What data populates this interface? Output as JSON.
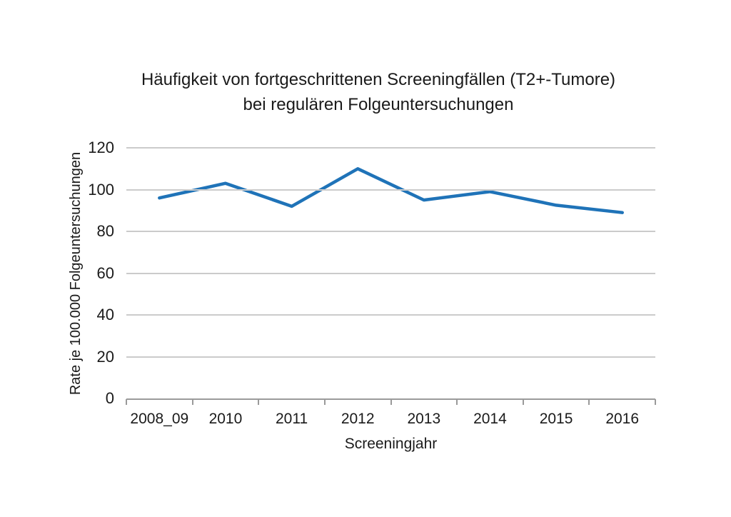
{
  "chart_data": {
    "type": "line",
    "title_line1": "Häufigkeit von fortgeschrittenen Screeningfällen (T2+-Tumore)",
    "title_line2": "bei regulären Folgeuntersuchungen",
    "xlabel": "Screeningjahr",
    "ylabel": "Rate je 100.000 Folgeuntersuchungen",
    "categories": [
      "2008_09",
      "2010",
      "2011",
      "2012",
      "2013",
      "2014",
      "2015",
      "2016"
    ],
    "values": [
      96,
      103,
      92,
      110,
      95,
      99,
      92.5,
      89
    ],
    "ylim": [
      0,
      120
    ],
    "yticks": [
      0,
      20,
      40,
      60,
      80,
      100,
      120
    ],
    "grid": "horizontal-only",
    "legend": "none",
    "colors": {
      "line": "#1f73b8",
      "gridline": "#cbcbcb",
      "axis": "#9a9a9a",
      "text": "#1a1a1a",
      "background": "#ffffff"
    }
  }
}
